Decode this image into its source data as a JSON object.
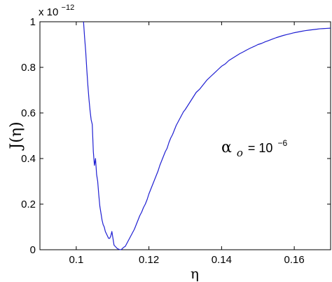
{
  "chart_data": {
    "type": "line",
    "xlabel": "η",
    "ylabel": "J(η)",
    "xlim": [
      0.09,
      0.17
    ],
    "ylim": [
      0,
      1
    ],
    "x_ticks": [
      "0.1",
      "0.12",
      "0.14",
      "0.16"
    ],
    "y_ticks": [
      "0",
      "0.2",
      "0.4",
      "0.6",
      "0.8",
      "1"
    ],
    "y_scale_prefix": "x 10",
    "y_scale_exponent": "−12",
    "annotation": {
      "symbol": "α",
      "subscript": "o",
      "equals": " = 10",
      "exponent": "−6"
    },
    "grid": false,
    "line_color": "#1f1fd2",
    "series": [
      {
        "x": [
          0.102,
          0.1023,
          0.1026,
          0.1029,
          0.1032,
          0.1035,
          0.1038,
          0.1041,
          0.1044,
          0.1047,
          0.105,
          0.1053,
          0.1056,
          0.1059,
          0.1062,
          0.1065,
          0.1068,
          0.1071,
          0.1074,
          0.1077,
          0.108,
          0.1083,
          0.1086,
          0.1089,
          0.1092,
          0.1095,
          0.1098,
          0.1101,
          0.1104,
          0.1107,
          0.111,
          0.1113,
          0.1116,
          0.1119,
          0.1122,
          0.1125,
          0.113,
          0.1135,
          0.114,
          0.1145,
          0.115,
          0.1155,
          0.116,
          0.1165,
          0.117,
          0.1175,
          0.118,
          0.1185,
          0.119,
          0.1195,
          0.12,
          0.1205,
          0.121,
          0.1215,
          0.122,
          0.1225,
          0.123,
          0.1235,
          0.124,
          0.1245,
          0.125,
          0.1255,
          0.126,
          0.1265,
          0.127,
          0.1275,
          0.128,
          0.1285,
          0.129,
          0.1295,
          0.13,
          0.131,
          0.132,
          0.133,
          0.134,
          0.135,
          0.136,
          0.137,
          0.138,
          0.139,
          0.14,
          0.141,
          0.142,
          0.143,
          0.144,
          0.145,
          0.146,
          0.147,
          0.148,
          0.149,
          0.15,
          0.151,
          0.152,
          0.153,
          0.154,
          0.155,
          0.156,
          0.157,
          0.158,
          0.159,
          0.16,
          0.161,
          0.162,
          0.163,
          0.164,
          0.165,
          0.166,
          0.167,
          0.168,
          0.169,
          0.17
        ],
        "y": [
          1.0,
          0.93,
          0.87,
          0.79,
          0.72,
          0.66,
          0.61,
          0.57,
          0.55,
          0.43,
          0.37,
          0.4,
          0.33,
          0.3,
          0.24,
          0.19,
          0.16,
          0.13,
          0.11,
          0.1,
          0.08,
          0.07,
          0.06,
          0.05,
          0.05,
          0.06,
          0.08,
          0.05,
          0.02,
          0.015,
          0.01,
          0.005,
          0.003,
          0.001,
          0.0,
          0.002,
          0.01,
          0.015,
          0.03,
          0.045,
          0.06,
          0.075,
          0.09,
          0.11,
          0.13,
          0.15,
          0.165,
          0.185,
          0.2,
          0.22,
          0.245,
          0.265,
          0.285,
          0.305,
          0.325,
          0.345,
          0.37,
          0.39,
          0.41,
          0.43,
          0.445,
          0.47,
          0.49,
          0.505,
          0.525,
          0.545,
          0.56,
          0.575,
          0.59,
          0.605,
          0.615,
          0.64,
          0.665,
          0.69,
          0.705,
          0.725,
          0.745,
          0.76,
          0.775,
          0.79,
          0.805,
          0.815,
          0.83,
          0.84,
          0.85,
          0.86,
          0.868,
          0.877,
          0.885,
          0.892,
          0.9,
          0.905,
          0.912,
          0.918,
          0.924,
          0.93,
          0.935,
          0.94,
          0.944,
          0.948,
          0.952,
          0.955,
          0.958,
          0.961,
          0.963,
          0.965,
          0.967,
          0.969,
          0.97,
          0.971,
          0.972
        ]
      }
    ]
  }
}
